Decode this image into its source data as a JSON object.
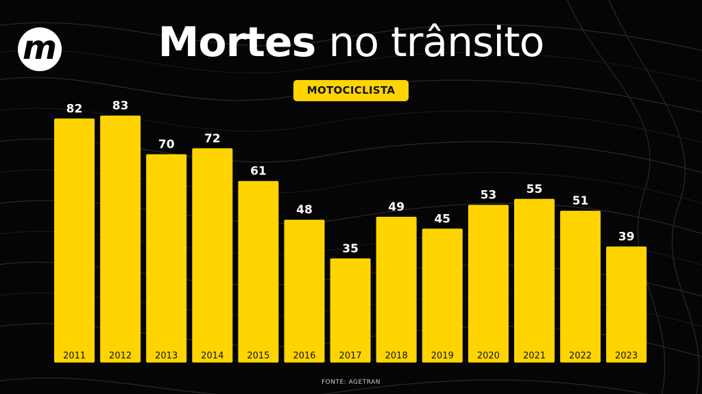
{
  "header": {
    "title_bold": "Mortes",
    "title_light": "no trânsito",
    "badge": "MOTOCICLISTA",
    "logo_letter": "m"
  },
  "footer": {
    "source": "FONTE: AGETRAN"
  },
  "colors": {
    "background": "#050505",
    "bar": "#ffd400",
    "text": "#ffffff"
  },
  "chart_data": {
    "type": "bar",
    "categories": [
      "2011",
      "2012",
      "2013",
      "2014",
      "2015",
      "2016",
      "2017",
      "2018",
      "2019",
      "2020",
      "2021",
      "2022",
      "2023"
    ],
    "values": [
      82,
      83,
      70,
      72,
      61,
      48,
      35,
      49,
      45,
      53,
      55,
      51,
      39
    ],
    "title": "Mortes no trânsito",
    "subtitle": "MOTOCICLISTA",
    "xlabel": "",
    "ylabel": "",
    "grid": false,
    "legend": "none"
  }
}
